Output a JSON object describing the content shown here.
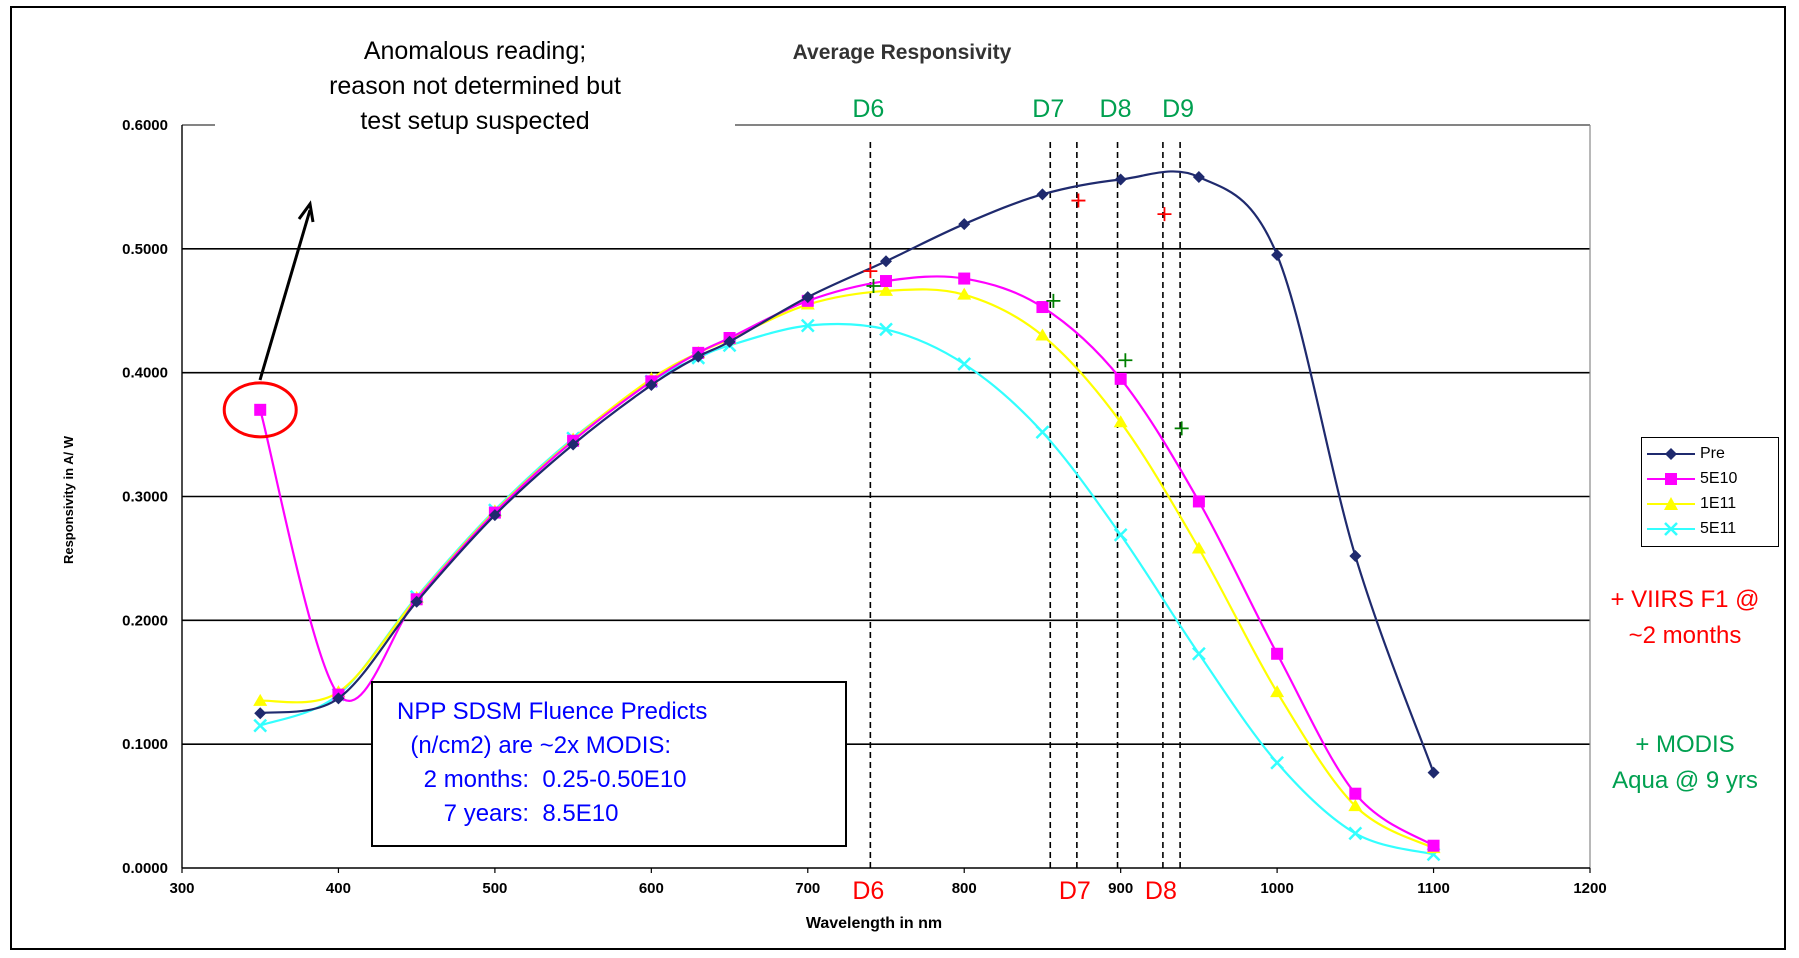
{
  "chart_data": {
    "type": "line",
    "title": "Average Responsivity",
    "xlabel": "Wavelength in nm",
    "ylabel": "Responsivity in A/ W",
    "xlim": [
      300,
      1200
    ],
    "ylim": [
      0,
      0.6
    ],
    "x_ticks": [
      "300",
      "400",
      "500",
      "600",
      "700",
      "800",
      "900",
      "1000",
      "1100",
      "1200"
    ],
    "y_ticks": [
      "0.0000",
      "0.1000",
      "0.2000",
      "0.3000",
      "0.4000",
      "0.5000",
      "0.6000"
    ],
    "grid": "horizontal",
    "legend_position": "right",
    "series": [
      {
        "name": "Pre",
        "color": "#1f2a6e",
        "marker": "diamond",
        "points": [
          [
            350,
            0.125
          ],
          [
            400,
            0.137
          ],
          [
            450,
            0.215
          ],
          [
            500,
            0.285
          ],
          [
            550,
            0.342
          ],
          [
            600,
            0.39
          ],
          [
            630,
            0.413
          ],
          [
            650,
            0.425
          ],
          [
            700,
            0.461
          ],
          [
            750,
            0.49
          ],
          [
            800,
            0.52
          ],
          [
            850,
            0.544
          ],
          [
            900,
            0.556
          ],
          [
            950,
            0.558
          ],
          [
            1000,
            0.495
          ],
          [
            1050,
            0.252
          ],
          [
            1100,
            0.077
          ]
        ]
      },
      {
        "name": "5E10",
        "color": "#ff00ff",
        "marker": "square",
        "points": [
          [
            350,
            0.37
          ],
          [
            400,
            0.14
          ],
          [
            450,
            0.217
          ],
          [
            500,
            0.287
          ],
          [
            550,
            0.345
          ],
          [
            600,
            0.393
          ],
          [
            630,
            0.416
          ],
          [
            650,
            0.428
          ],
          [
            700,
            0.458
          ],
          [
            750,
            0.474
          ],
          [
            800,
            0.476
          ],
          [
            850,
            0.453
          ],
          [
            900,
            0.395
          ],
          [
            950,
            0.296
          ],
          [
            1000,
            0.173
          ],
          [
            1050,
            0.06
          ],
          [
            1100,
            0.018
          ]
        ]
      },
      {
        "name": "1E11",
        "color": "#ffff00",
        "marker": "triangle",
        "points": [
          [
            350,
            0.135
          ],
          [
            400,
            0.142
          ],
          [
            450,
            0.218
          ],
          [
            500,
            0.288
          ],
          [
            550,
            0.346
          ],
          [
            600,
            0.395
          ],
          [
            630,
            0.416
          ],
          [
            650,
            0.427
          ],
          [
            700,
            0.455
          ],
          [
            750,
            0.466
          ],
          [
            800,
            0.463
          ],
          [
            850,
            0.43
          ],
          [
            900,
            0.36
          ],
          [
            950,
            0.258
          ],
          [
            1000,
            0.142
          ],
          [
            1050,
            0.05
          ],
          [
            1100,
            0.016
          ]
        ]
      },
      {
        "name": "5E11",
        "color": "#33ffff",
        "marker": "x",
        "points": [
          [
            350,
            0.115
          ],
          [
            400,
            0.14
          ],
          [
            450,
            0.219
          ],
          [
            500,
            0.289
          ],
          [
            550,
            0.347
          ],
          [
            600,
            0.393
          ],
          [
            630,
            0.412
          ],
          [
            650,
            0.422
          ],
          [
            700,
            0.438
          ],
          [
            750,
            0.435
          ],
          [
            800,
            0.407
          ],
          [
            850,
            0.352
          ],
          [
            900,
            0.269
          ],
          [
            950,
            0.173
          ],
          [
            1000,
            0.085
          ],
          [
            1050,
            0.028
          ],
          [
            1100,
            0.011
          ]
        ]
      }
    ],
    "viirs_points": {
      "marker": "+",
      "color": "#ff0000",
      "points": [
        [
          740,
          0.482
        ],
        [
          873,
          0.539
        ],
        [
          928,
          0.528
        ]
      ]
    },
    "modis_points": {
      "marker": "+",
      "color": "#008000",
      "points": [
        [
          742,
          0.47
        ],
        [
          857,
          0.458
        ],
        [
          903,
          0.41
        ],
        [
          939,
          0.355
        ]
      ]
    },
    "detector_lines": [
      {
        "x": 740,
        "top_label": "D6",
        "bottom_label": "D6"
      },
      {
        "x": 855,
        "top_label": "D7",
        "bottom_label": ""
      },
      {
        "x": 872,
        "top_label": "",
        "bottom_label": "D7"
      },
      {
        "x": 898,
        "top_label": "D8",
        "bottom_label": ""
      },
      {
        "x": 927,
        "top_label": "",
        "bottom_label": "D8"
      },
      {
        "x": 938,
        "top_label": "D9",
        "bottom_label": ""
      }
    ],
    "detector_label_colors": {
      "top": "#00a050",
      "bottom": "#ff0000"
    }
  },
  "annotations": {
    "anomaly_lines": [
      "Anomalous reading;",
      "reason not determined but",
      "test setup suspected"
    ],
    "anomaly_point": [
      350,
      0.37
    ],
    "fluence_lines": [
      "NPP SDSM Fluence Predicts",
      "  (n/cm2) are ~2x MODIS:",
      "    2 months:  0.25-0.50E10",
      "       7 years:  8.5E10"
    ],
    "viirs_lines": [
      "+ VIIRS F1 @",
      "~2 months"
    ],
    "modis_lines": [
      "+ MODIS",
      "Aqua @ 9 yrs"
    ],
    "colors": {
      "anomaly_circle": "#ff0000",
      "fluence_text": "#0000ff",
      "viirs": "#ff0000",
      "modis": "#00a050"
    }
  }
}
